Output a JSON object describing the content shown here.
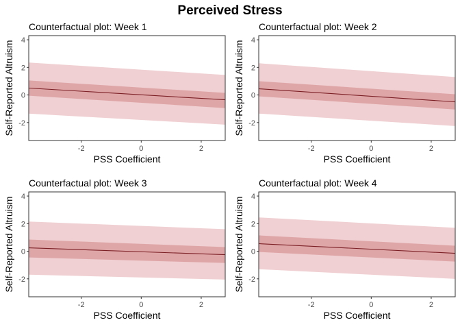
{
  "title": "Perceived Stress",
  "colors": {
    "outer_band": "#f0d0d2",
    "inner_band": "#dfa6a8",
    "line": "#7a1f24",
    "frame": "#333333"
  },
  "chart_data": [
    {
      "type": "line",
      "title": "Counterfactual plot: Week 1",
      "xlabel": "PSS Coefficient",
      "ylabel": "Self-Reported Altruism",
      "xlim": [
        -3.75,
        2.8
      ],
      "ylim": [
        -3.3,
        4.3
      ],
      "xticks": [
        -2,
        0,
        2
      ],
      "yticks": [
        -2,
        0,
        2,
        4
      ],
      "grid": false,
      "line": {
        "x": [
          -3.75,
          2.8
        ],
        "y": [
          0.5,
          -0.35
        ]
      },
      "inner_band": {
        "x": [
          -3.75,
          2.8
        ],
        "lower": [
          -0.05,
          -0.95
        ],
        "upper": [
          1.05,
          0.15
        ]
      },
      "outer_band": {
        "x": [
          -3.75,
          2.8
        ],
        "lower": [
          -1.35,
          -2.15
        ],
        "upper": [
          2.35,
          1.45
        ]
      }
    },
    {
      "type": "line",
      "title": "Counterfactual plot: Week 2",
      "xlabel": "PSS Coefficient",
      "ylabel": "Self-Reported Altruism",
      "xlim": [
        -3.75,
        2.8
      ],
      "ylim": [
        -3.3,
        4.3
      ],
      "xticks": [
        -2,
        0,
        2
      ],
      "yticks": [
        -2,
        0,
        2,
        4
      ],
      "grid": false,
      "line": {
        "x": [
          -3.75,
          2.8
        ],
        "y": [
          0.45,
          -0.5
        ]
      },
      "inner_band": {
        "x": [
          -3.75,
          2.8
        ],
        "lower": [
          -0.1,
          -1.05
        ],
        "upper": [
          1.0,
          0.05
        ]
      },
      "outer_band": {
        "x": [
          -3.75,
          2.8
        ],
        "lower": [
          -1.35,
          -2.25
        ],
        "upper": [
          2.3,
          1.3
        ]
      }
    },
    {
      "type": "line",
      "title": "Counterfactual plot: Week 3",
      "xlabel": "PSS Coefficient",
      "ylabel": "Self-Reported Altruism",
      "xlim": [
        -3.75,
        2.8
      ],
      "ylim": [
        -3.3,
        4.3
      ],
      "xticks": [
        -2,
        0,
        2
      ],
      "yticks": [
        -2,
        0,
        2,
        4
      ],
      "grid": false,
      "line": {
        "x": [
          -3.75,
          2.8
        ],
        "y": [
          0.25,
          -0.25
        ]
      },
      "inner_band": {
        "x": [
          -3.75,
          2.8
        ],
        "lower": [
          -0.45,
          -0.85
        ],
        "upper": [
          0.85,
          0.3
        ]
      },
      "outer_band": {
        "x": [
          -3.75,
          2.8
        ],
        "lower": [
          -1.7,
          -2.05
        ],
        "upper": [
          2.15,
          1.6
        ]
      }
    },
    {
      "type": "line",
      "title": "Counterfactual plot: Week 4",
      "xlabel": "PSS Coefficient",
      "ylabel": "Self-Reported Altruism",
      "xlim": [
        -3.75,
        2.8
      ],
      "ylim": [
        -3.3,
        4.3
      ],
      "xticks": [
        -2,
        0,
        2
      ],
      "yticks": [
        -2,
        0,
        2,
        4
      ],
      "grid": false,
      "line": {
        "x": [
          -3.75,
          2.8
        ],
        "y": [
          0.55,
          -0.15
        ]
      },
      "inner_band": {
        "x": [
          -3.75,
          2.8
        ],
        "lower": [
          -0.05,
          -0.75
        ],
        "upper": [
          1.15,
          0.4
        ]
      },
      "outer_band": {
        "x": [
          -3.75,
          2.8
        ],
        "lower": [
          -1.3,
          -2.0
        ],
        "upper": [
          2.45,
          1.7
        ]
      }
    }
  ]
}
